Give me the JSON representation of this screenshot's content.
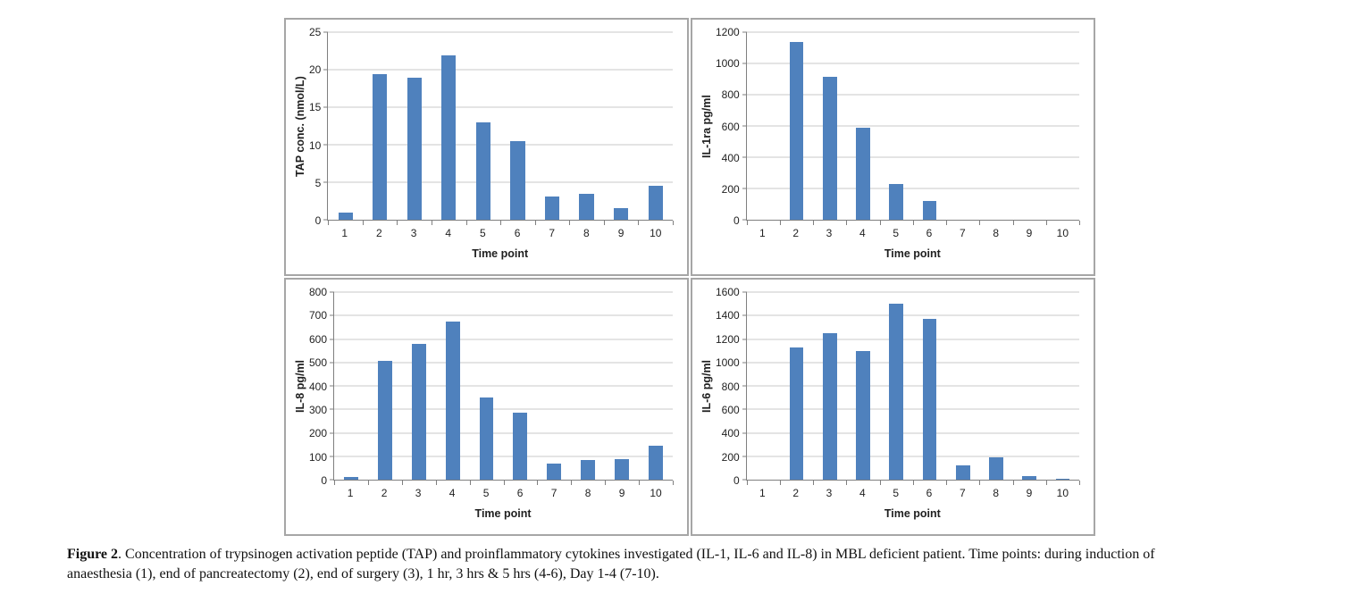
{
  "colors": {
    "bar": "#4F81BD",
    "gridline": "#C9C9C9",
    "axis": "#7F7F7F",
    "panel_border": "#A6A6A6"
  },
  "chart_data": [
    {
      "type": "bar",
      "panel": "top-left",
      "title": "",
      "ylabel": "TAP conc. (nmol/L)",
      "xlabel": "Time point",
      "categories": [
        "1",
        "2",
        "3",
        "4",
        "5",
        "6",
        "7",
        "8",
        "9",
        "10"
      ],
      "values": [
        1.0,
        19.4,
        18.9,
        21.9,
        13.0,
        10.5,
        3.1,
        3.4,
        1.5,
        4.5
      ],
      "ylim": [
        0,
        25
      ],
      "ytick_step": 5,
      "grid": true,
      "legend": false
    },
    {
      "type": "bar",
      "panel": "top-right",
      "title": "",
      "ylabel": "IL-1ra pg/ml",
      "xlabel": "Time point",
      "categories": [
        "1",
        "2",
        "3",
        "4",
        "5",
        "6",
        "7",
        "8",
        "9",
        "10"
      ],
      "values": [
        0,
        1140,
        915,
        590,
        228,
        120,
        0,
        0,
        0,
        0
      ],
      "ylim": [
        0,
        1200
      ],
      "ytick_step": 200,
      "grid": true,
      "legend": false
    },
    {
      "type": "bar",
      "panel": "bottom-left",
      "title": "",
      "ylabel": "IL-8 pg/ml",
      "xlabel": "Time point",
      "categories": [
        "1",
        "2",
        "3",
        "4",
        "5",
        "6",
        "7",
        "8",
        "9",
        "10"
      ],
      "values": [
        10,
        505,
        578,
        675,
        352,
        285,
        67,
        82,
        88,
        143
      ],
      "ylim": [
        0,
        800
      ],
      "ytick_step": 100,
      "grid": true,
      "legend": false
    },
    {
      "type": "bar",
      "panel": "bottom-right",
      "title": "",
      "ylabel": "IL-6 pg/ml",
      "xlabel": "Time point",
      "categories": [
        "1",
        "2",
        "3",
        "4",
        "5",
        "6",
        "7",
        "8",
        "9",
        "10"
      ],
      "values": [
        0,
        1125,
        1250,
        1100,
        1500,
        1370,
        120,
        190,
        30,
        10
      ],
      "ylim": [
        0,
        1600
      ],
      "ytick_step": 200,
      "grid": true,
      "legend": false
    }
  ],
  "figure": {
    "caption": {
      "label": "Figure 2",
      "line1": ". Concentration of trypsinogen activation peptide (TAP) and proinflammatory cytokines investigated (IL-1, IL-6 and IL-8) in MBL deficient patient. Time points: during induction of",
      "line2": "anaesthesia (1), end of pancreatectomy (2), end of surgery (3), 1 hr, 3 hrs & 5 hrs (4-6), Day 1-4 (7-10)."
    }
  }
}
